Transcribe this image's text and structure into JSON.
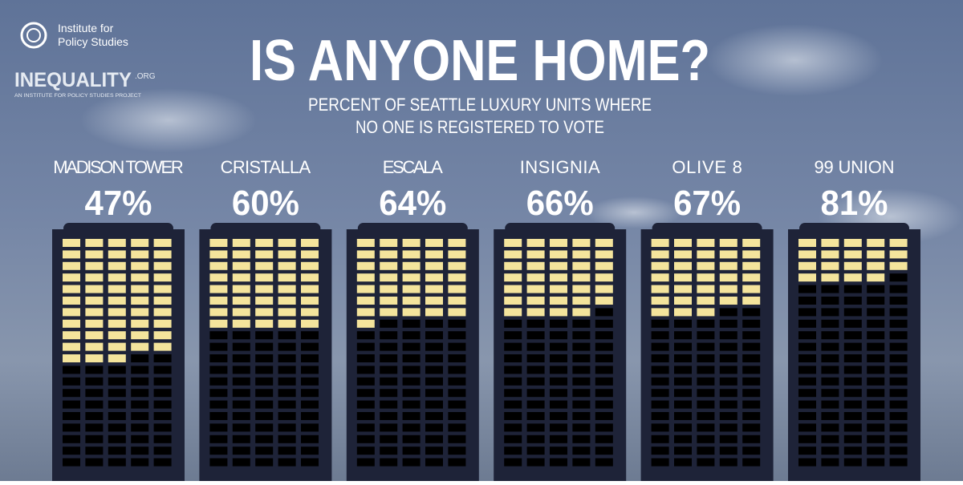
{
  "logo": {
    "org_lines": [
      "Institute for",
      "Policy Studies"
    ],
    "brand": "INEQUALITY",
    "brand_suffix": ".ORG",
    "tagline": "AN INSTITUTE FOR POLICY STUDIES PROJECT"
  },
  "chart_data": {
    "type": "building",
    "title": "IS ANYONE HOME?",
    "subtitle_lines": [
      "PERCENT OF SEATTLE LUXURY UNITS WHERE",
      "NO ONE IS REGISTERED TO VOTE"
    ],
    "categories": [
      "MADISON TOWER",
      "CRISTALLA",
      "ESCALA",
      "INSIGNIA",
      "OLIVE 8",
      "99 UNION"
    ],
    "values": [
      47,
      60,
      64,
      66,
      67,
      81
    ],
    "value_labels": [
      "47%",
      "60%",
      "64%",
      "66%",
      "67%",
      "81%"
    ],
    "ylim": [
      0,
      100
    ],
    "color": "#000000",
    "lit_color": "#f4e49c"
  }
}
